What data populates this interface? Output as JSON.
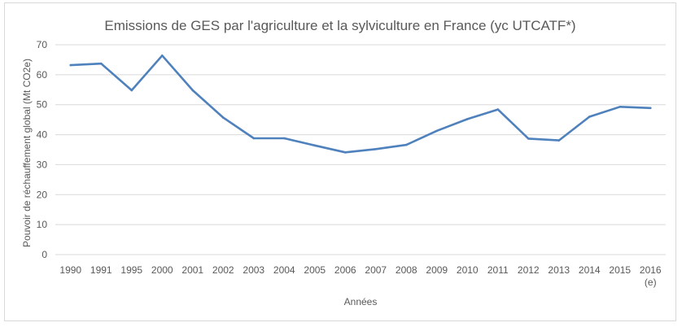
{
  "chart_data": {
    "type": "line",
    "title": "Emissions de GES par l'agriculture et la sylviculture en France (yc UTCATF*)",
    "xlabel": "Années",
    "ylabel": "Pouvoir de réchauffement global (Mt CO2e)",
    "ylim": [
      0,
      70
    ],
    "yticks": [
      0,
      10,
      20,
      30,
      40,
      50,
      60,
      70
    ],
    "grid": true,
    "categories": [
      "1990",
      "1991",
      "1995",
      "2000",
      "2001",
      "2002",
      "2003",
      "2004",
      "2005",
      "2006",
      "2007",
      "2008",
      "2009",
      "2010",
      "2011",
      "2012",
      "2013",
      "2014",
      "2015",
      "2016\n(e)"
    ],
    "series": [
      {
        "color": "#4f81bd",
        "values": [
          63.2,
          63.7,
          54.8,
          66.4,
          54.8,
          45.7,
          38.8,
          38.8,
          36.4,
          34.1,
          35.2,
          36.6,
          41.3,
          45.2,
          48.4,
          38.7,
          38.1,
          46.0,
          49.3,
          48.9
        ]
      }
    ]
  }
}
